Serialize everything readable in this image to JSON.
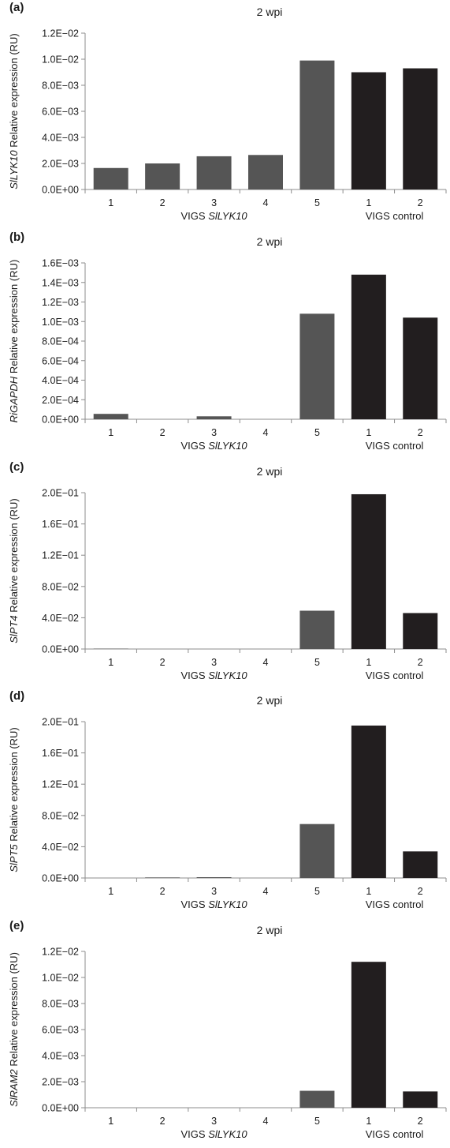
{
  "colors": {
    "vigs_target": "#555555",
    "vigs_control": "#221e1f",
    "axis": "#8c8c8c"
  },
  "chart_data": [
    {
      "type": "bar",
      "panel": "(a)",
      "title": "2 wpi",
      "ylabel_gene": "SlLYK10",
      "ylabel_rest": " Relative expression (RU)",
      "categories": [
        "1",
        "2",
        "3",
        "4",
        "5",
        "1",
        "2"
      ],
      "groups": [
        {
          "label_plain": "VIGS ",
          "label_italic": "SlLYK10",
          "count": 5,
          "color": "#555555"
        },
        {
          "label_plain": "VIGS control",
          "label_italic": "",
          "count": 2,
          "color": "#221e1f"
        }
      ],
      "values": [
        0.00165,
        0.002,
        0.00255,
        0.00265,
        0.0099,
        0.009,
        0.0093
      ],
      "ylim": [
        0,
        0.012
      ],
      "yticks": [
        "0.0E+00",
        "2.0E−03",
        "4.0E−03",
        "6.0E−03",
        "8.0E−03",
        "1.0E−02",
        "1.2E−02"
      ],
      "grid": false
    },
    {
      "type": "bar",
      "panel": "(b)",
      "title": "2 wpi",
      "ylabel_gene": "RiGAPDH",
      "ylabel_rest": "  Relative expression (RU)",
      "categories": [
        "1",
        "2",
        "3",
        "4",
        "5",
        "1",
        "2"
      ],
      "groups": [
        {
          "label_plain": "VIGS ",
          "label_italic": "SlLYK10",
          "count": 5,
          "color": "#555555"
        },
        {
          "label_plain": "VIGS control",
          "label_italic": "",
          "count": 2,
          "color": "#221e1f"
        }
      ],
      "values": [
        5.5e-05,
        0.0,
        3e-05,
        0.0,
        0.00108,
        0.00148,
        0.00104
      ],
      "ylim": [
        0,
        0.0016
      ],
      "yticks": [
        "0.0E+00",
        "2.0E−04",
        "4.0E−04",
        "6.0E−04",
        "8.0E−04",
        "1.0E−03",
        "1.2E−03",
        "1.4E−03",
        "1.6E−03"
      ],
      "grid": false
    },
    {
      "type": "bar",
      "panel": "(c)",
      "title": "2 wpi",
      "ylabel_gene": "SlPT4",
      "ylabel_rest": " Relative expression (RU)",
      "categories": [
        "1",
        "2",
        "3",
        "4",
        "5",
        "1",
        "2"
      ],
      "groups": [
        {
          "label_plain": "VIGS ",
          "label_italic": "SlLYK10",
          "count": 5,
          "color": "#555555"
        },
        {
          "label_plain": "VIGS control",
          "label_italic": "",
          "count": 2,
          "color": "#221e1f"
        }
      ],
      "values": [
        0.0005,
        0.0,
        0.0,
        0.0,
        0.049,
        0.198,
        0.046
      ],
      "ylim": [
        0,
        0.2
      ],
      "yticks": [
        "0.0E+00",
        "4.0E−02",
        "8.0E−02",
        "1.2E−01",
        "1.6E−01",
        "2.0E−01"
      ],
      "grid": false
    },
    {
      "type": "bar",
      "panel": "(d)",
      "title": "2 wpi",
      "ylabel_gene": "SlPT5",
      "ylabel_rest": " Relative expression (RU)",
      "categories": [
        "1",
        "2",
        "3",
        "4",
        "5",
        "1",
        "2"
      ],
      "groups": [
        {
          "label_plain": "VIGS ",
          "label_italic": "SlLYK10",
          "count": 5,
          "color": "#555555"
        },
        {
          "label_plain": "VIGS control",
          "label_italic": "",
          "count": 2,
          "color": "#221e1f"
        }
      ],
      "values": [
        0.0,
        0.0007,
        0.001,
        0.0,
        0.069,
        0.195,
        0.034
      ],
      "ylim": [
        0,
        0.2
      ],
      "yticks": [
        "0.0E+00",
        "4.0E−02",
        "8.0E−02",
        "1.2E−01",
        "1.6E−01",
        "2.0E−01"
      ],
      "grid": false
    },
    {
      "type": "bar",
      "panel": "(e)",
      "title": "2 wpi",
      "ylabel_gene": "SlRAM2",
      "ylabel_rest": " Relative expression (RU)",
      "categories": [
        "1",
        "2",
        "3",
        "4",
        "5",
        "1",
        "2"
      ],
      "groups": [
        {
          "label_plain": "VIGS ",
          "label_italic": "SlLYK10",
          "count": 5,
          "color": "#555555"
        },
        {
          "label_plain": "VIGS control",
          "label_italic": "",
          "count": 2,
          "color": "#221e1f"
        }
      ],
      "values": [
        0.0,
        0.0,
        0.0,
        0.0,
        0.0013,
        0.0112,
        0.00125
      ],
      "ylim": [
        0,
        0.012
      ],
      "yticks": [
        "0.0E+00",
        "2.0E−03",
        "4.0E−03",
        "6.0E−03",
        "8.0E−03",
        "1.0E−02",
        "1.2E−02"
      ],
      "grid": false
    }
  ]
}
